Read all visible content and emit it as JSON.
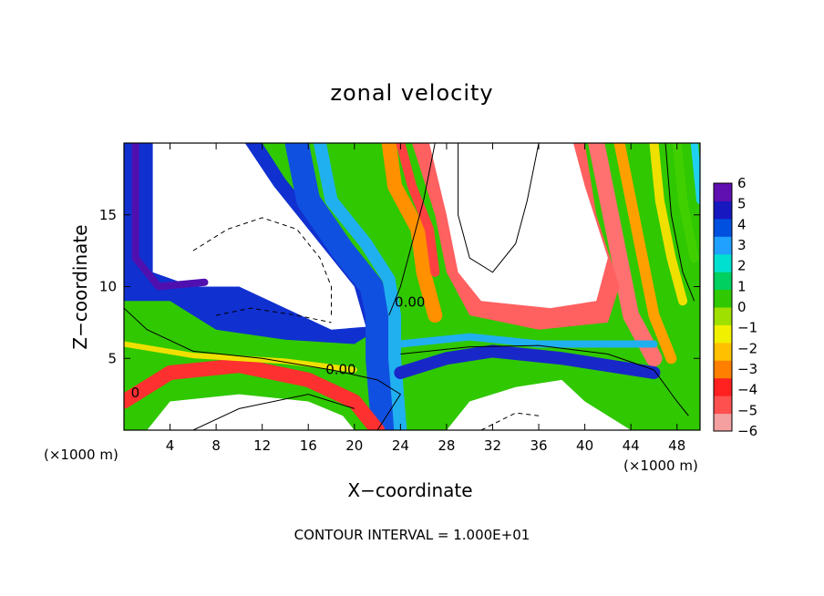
{
  "chart_data": {
    "type": "heatmap",
    "title": "zonal velocity",
    "xlabel": "X−coordinate",
    "ylabel": "Z−coordinate",
    "x_unit_label": "(×1000 m)",
    "y_unit_label": "(×1000 m)",
    "xlim": [
      0,
      50
    ],
    "ylim": [
      0,
      20
    ],
    "x_ticks": [
      4,
      8,
      12,
      16,
      20,
      24,
      28,
      32,
      36,
      40,
      44,
      48
    ],
    "y_ticks": [
      5,
      10,
      15
    ],
    "colorbar": {
      "ticks": [
        "6",
        "5",
        "4",
        "3",
        "2",
        "1",
        "0",
        "−1",
        "−2",
        "−3",
        "−4",
        "−5",
        "−6"
      ],
      "colors": [
        "#f4a0a0",
        "#ff5050",
        "#ff2020",
        "#ff8000",
        "#ffc000",
        "#f0f000",
        "#a0e000",
        "#30c800",
        "#00d060",
        "#00e0d0",
        "#20a0ff",
        "#0050e0",
        "#1818c0",
        "#6010b0"
      ]
    },
    "contour_labels": [
      "0.00",
      "0.00",
      "0"
    ],
    "footer": "CONTOUR INTERVAL = 1.000E+01"
  }
}
